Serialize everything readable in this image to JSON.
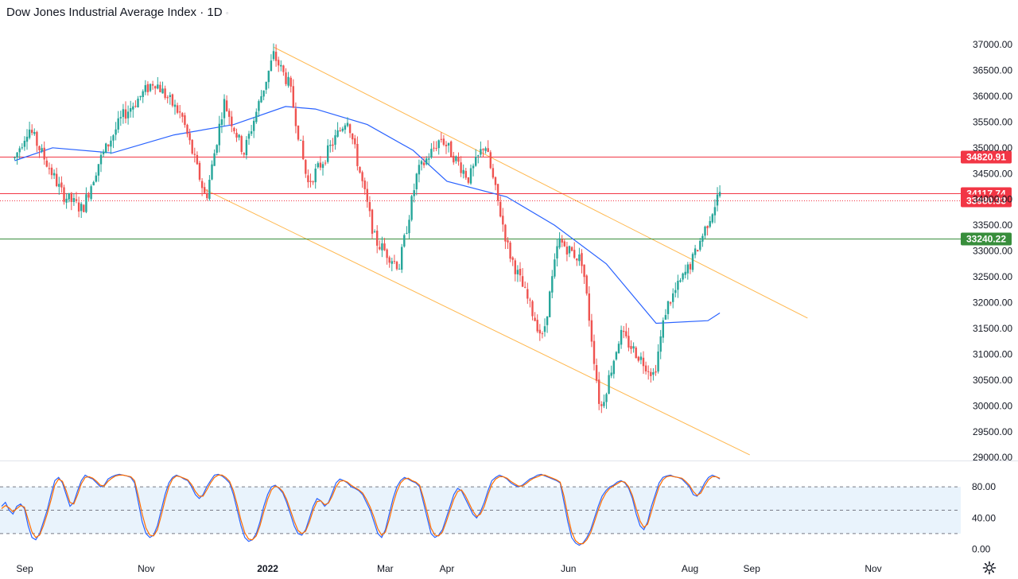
{
  "header": {
    "symbol": "Dow Jones Industrial Average Index",
    "interval": "1D",
    "sep": " · ",
    "menu_glyph": "◦"
  },
  "chart_data": [
    {
      "type": "candlestick",
      "title": "Dow Jones Industrial Average Index · 1D",
      "x_tick_labels": [
        "Sep",
        "Nov",
        "2022",
        "Mar",
        "Apr",
        "Jun",
        "Aug",
        "Sep",
        "Nov"
      ],
      "y_tick_values": [
        37000,
        36500,
        36000,
        35500,
        35000,
        34500,
        34000,
        33500,
        33000,
        32500,
        32000,
        31500,
        31000,
        30500,
        30000,
        29500,
        29000
      ],
      "y_tick_labels": [
        "37000.00",
        "36500.00",
        "36000.00",
        "35500.00",
        "35000.00",
        "34500.00",
        "34000.00",
        "33500.00",
        "33000.00",
        "32500.00",
        "32000.00",
        "31500.00",
        "31000.00",
        "30500.00",
        "30000.00",
        "29500.00",
        "29000.00"
      ],
      "ylim": [
        29000,
        37000
      ],
      "price_path": [
        [
          "2021-08-27",
          34800
        ],
        [
          "2021-09-03",
          35400
        ],
        [
          "2021-09-20",
          34100
        ],
        [
          "2021-09-30",
          33800
        ],
        [
          "2021-10-08",
          34700
        ],
        [
          "2021-10-20",
          35600
        ],
        [
          "2021-11-05",
          36300
        ],
        [
          "2021-11-19",
          35600
        ],
        [
          "2021-12-01",
          34000
        ],
        [
          "2021-12-10",
          35900
        ],
        [
          "2021-12-20",
          34900
        ],
        [
          "2022-01-04",
          36800
        ],
        [
          "2022-01-12",
          36200
        ],
        [
          "2022-01-21",
          34300
        ],
        [
          "2022-01-28",
          34700
        ],
        [
          "2022-02-10",
          35600
        ],
        [
          "2022-02-24",
          33200
        ],
        [
          "2022-03-08",
          32700
        ],
        [
          "2022-03-17",
          34500
        ],
        [
          "2022-03-29",
          35200
        ],
        [
          "2022-04-12",
          34400
        ],
        [
          "2022-04-20",
          35100
        ],
        [
          "2022-05-02",
          33000
        ],
        [
          "2022-05-19",
          31300
        ],
        [
          "2022-05-27",
          33200
        ],
        [
          "2022-06-08",
          32800
        ],
        [
          "2022-06-17",
          29900
        ],
        [
          "2022-06-27",
          31400
        ],
        [
          "2022-07-14",
          30600
        ],
        [
          "2022-07-20",
          31900
        ],
        [
          "2022-08-02",
          32800
        ],
        [
          "2022-08-16",
          34150
        ]
      ],
      "ma_series": {
        "name": "",
        "color": "#2962ff",
        "points": [
          [
            "2021-08-27",
            34750
          ],
          [
            "2021-09-15",
            35000
          ],
          [
            "2021-10-15",
            34900
          ],
          [
            "2021-11-15",
            35250
          ],
          [
            "2021-12-15",
            35450
          ],
          [
            "2022-01-10",
            35800
          ],
          [
            "2022-01-25",
            35750
          ],
          [
            "2022-02-20",
            35450
          ],
          [
            "2022-03-15",
            34950
          ],
          [
            "2022-04-01",
            34350
          ],
          [
            "2022-05-01",
            34050
          ],
          [
            "2022-05-25",
            33500
          ],
          [
            "2022-06-20",
            32750
          ],
          [
            "2022-07-15",
            31600
          ],
          [
            "2022-08-10",
            31650
          ],
          [
            "2022-08-16",
            31800
          ]
        ]
      },
      "channel_lines": {
        "color": "#ffb74d",
        "upper": [
          [
            "2022-01-04",
            36950
          ],
          [
            "2022-09-29",
            31700
          ]
        ],
        "lower": [
          [
            "2021-11-30",
            34200
          ],
          [
            "2022-08-31",
            29050
          ]
        ]
      },
      "horizontal_levels": [
        {
          "value": 34820.91,
          "label": "34820.91",
          "color": "#f23645",
          "style": "solid"
        },
        {
          "value": 34117.74,
          "label": "34117.74",
          "color": "#f23645",
          "style": "solid"
        },
        {
          "value": 33980.33,
          "label": "33980.33",
          "color": "#f23645",
          "style": "dotted"
        },
        {
          "value": 33240.22,
          "label": "33240.22",
          "color": "#388e3c",
          "style": "solid"
        }
      ]
    },
    {
      "type": "line",
      "indicator": "stochastic",
      "y_tick_values": [
        80,
        40,
        0
      ],
      "y_tick_labels": [
        "80.00",
        "40.00",
        "0.00"
      ],
      "band": [
        20,
        80
      ],
      "midline": 50,
      "ylim": [
        0,
        100
      ],
      "series": [
        {
          "name": "",
          "color": "#2962ff",
          "values": [
            55,
            60,
            50,
            45,
            55,
            58,
            52,
            30,
            15,
            12,
            20,
            35,
            50,
            70,
            88,
            92,
            85,
            70,
            55,
            60,
            75,
            88,
            95,
            92,
            90,
            85,
            80,
            82,
            90,
            93,
            95,
            96,
            95,
            94,
            92,
            85,
            60,
            35,
            20,
            15,
            18,
            30,
            50,
            70,
            85,
            92,
            95,
            93,
            90,
            88,
            80,
            70,
            65,
            70,
            80,
            88,
            95,
            96,
            94,
            90,
            85,
            70,
            50,
            30,
            15,
            10,
            12,
            20,
            35,
            55,
            70,
            80,
            82,
            78,
            72,
            60,
            45,
            30,
            20,
            18,
            25,
            40,
            55,
            65,
            62,
            55,
            60,
            72,
            85,
            90,
            88,
            85,
            80,
            78,
            75,
            70,
            60,
            50,
            35,
            20,
            15,
            25,
            45,
            65,
            80,
            88,
            92,
            90,
            87,
            85,
            80,
            60,
            40,
            20,
            15,
            18,
            25,
            40,
            55,
            70,
            78,
            75,
            65,
            55,
            45,
            40,
            48,
            60,
            75,
            88,
            92,
            95,
            93,
            90,
            85,
            82,
            80,
            82,
            86,
            90,
            92,
            95,
            96,
            94,
            92,
            90,
            88,
            85,
            60,
            35,
            15,
            8,
            5,
            8,
            15,
            25,
            40,
            55,
            68,
            75,
            80,
            82,
            86,
            88,
            85,
            78,
            65,
            45,
            30,
            25,
            35,
            55,
            70,
            85,
            92,
            94,
            95,
            93,
            92,
            90,
            85,
            80,
            70,
            68,
            75,
            85,
            92,
            95,
            93,
            90
          ]
        },
        {
          "name": "",
          "color": "#ff6d00",
          "values": [
            52,
            56,
            53,
            48,
            52,
            56,
            54,
            38,
            22,
            15,
            18,
            30,
            45,
            63,
            82,
            90,
            87,
            75,
            60,
            58,
            70,
            84,
            92,
            93,
            91,
            87,
            82,
            81,
            87,
            91,
            94,
            95,
            95,
            94,
            93,
            88,
            68,
            45,
            27,
            18,
            17,
            25,
            43,
            63,
            80,
            90,
            94,
            93,
            91,
            89,
            83,
            74,
            68,
            68,
            76,
            85,
            92,
            95,
            95,
            92,
            87,
            75,
            57,
            37,
            21,
            13,
            12,
            17,
            30,
            48,
            64,
            76,
            81,
            79,
            74,
            64,
            50,
            36,
            24,
            20,
            23,
            35,
            50,
            61,
            62,
            57,
            59,
            68,
            80,
            87,
            88,
            86,
            82,
            79,
            76,
            72,
            64,
            54,
            41,
            26,
            18,
            22,
            38,
            58,
            74,
            85,
            90,
            91,
            88,
            86,
            82,
            66,
            47,
            27,
            18,
            17,
            22,
            35,
            50,
            64,
            74,
            76,
            69,
            59,
            49,
            42,
            45,
            55,
            70,
            83,
            90,
            93,
            93,
            91,
            87,
            84,
            81,
            81,
            84,
            88,
            91,
            93,
            95,
            95,
            93,
            91,
            89,
            86,
            68,
            43,
            22,
            11,
            7,
            7,
            12,
            21,
            35,
            50,
            63,
            72,
            78,
            81,
            84,
            87,
            86,
            80,
            69,
            52,
            36,
            28,
            32,
            48,
            65,
            80,
            89,
            93,
            94,
            93,
            92,
            91,
            87,
            82,
            74,
            69,
            72,
            81,
            89,
            93,
            93,
            91
          ]
        }
      ]
    }
  ]
}
